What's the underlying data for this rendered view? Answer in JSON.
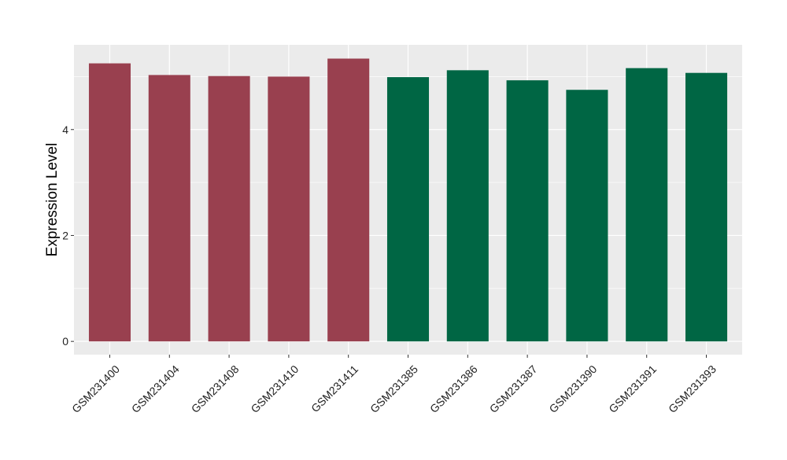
{
  "chart_data": {
    "type": "bar",
    "title": "",
    "xlabel": "",
    "ylabel": "Expression Level",
    "ylim": [
      -0.25,
      5.6
    ],
    "yticks": [
      0,
      2,
      4
    ],
    "grid": true,
    "categories": [
      "GSM231400",
      "GSM231404",
      "GSM231408",
      "GSM231410",
      "GSM231411",
      "GSM231385",
      "GSM231386",
      "GSM231387",
      "GSM231390",
      "GSM231391",
      "GSM231393"
    ],
    "values": [
      5.25,
      5.03,
      5.01,
      5.0,
      5.34,
      4.99,
      5.12,
      4.93,
      4.75,
      5.16,
      5.07
    ],
    "groups": [
      0,
      0,
      0,
      0,
      0,
      1,
      1,
      1,
      1,
      1,
      1
    ],
    "colors": [
      "#99404F",
      "#006644"
    ],
    "panel_background": "#EBEBEB",
    "grid_color": "#FFFFFF"
  }
}
